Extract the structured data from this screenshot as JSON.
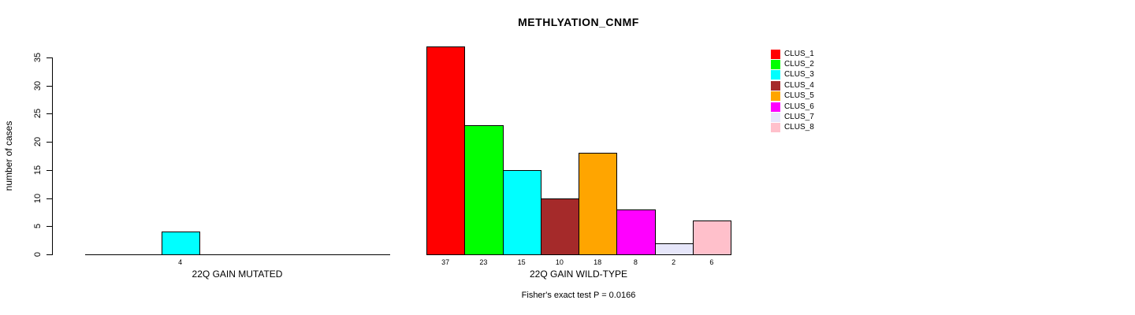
{
  "title": "METHLYATION_CNMF",
  "chart_data": {
    "type": "bar",
    "title": "METHLYATION_CNMF",
    "xlabel": "",
    "ylabel": "number of cases",
    "ylim": [
      0,
      35
    ],
    "yticks": [
      0,
      5,
      10,
      15,
      20,
      25,
      30,
      35
    ],
    "grid": "off",
    "legend_position": "right",
    "categories": [
      "CLUS_1",
      "CLUS_2",
      "CLUS_3",
      "CLUS_4",
      "CLUS_5",
      "CLUS_6",
      "CLUS_7",
      "CLUS_8"
    ],
    "colors": [
      "#FF0000",
      "#00FF00",
      "#00FFFF",
      "#A52A2A",
      "#FFA500",
      "#FF00FF",
      "#E6E6FA",
      "#FFC0CB"
    ],
    "groups": [
      {
        "label": "22Q GAIN MUTATED",
        "values": [
          0,
          0,
          4,
          0,
          0,
          0,
          0,
          0
        ]
      },
      {
        "label": "22Q GAIN WILD-TYPE",
        "values": [
          37,
          23,
          15,
          10,
          18,
          8,
          2,
          6
        ]
      }
    ],
    "bar_value_labels_shown_only_when_nonzero": true,
    "annotation": "Fisher's exact test P = 0.0166"
  }
}
